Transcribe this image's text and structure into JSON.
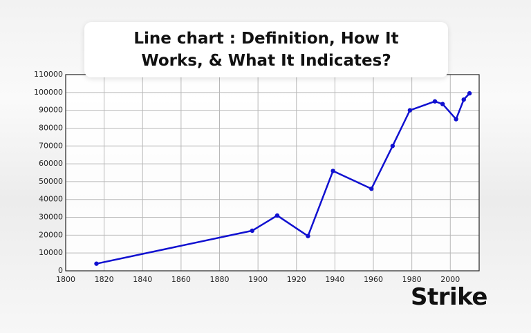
{
  "title": "Line chart : Definition, How It Works, & What It Indicates?",
  "logo": "Strike",
  "chart_data": {
    "type": "line",
    "x": [
      1816,
      1897,
      1910,
      1926,
      1939,
      1959,
      1970,
      1979,
      1992,
      1996,
      2003,
      2007,
      2010
    ],
    "series": [
      {
        "color": "#1010d0",
        "values": [
          4000,
          22500,
          31000,
          19500,
          56000,
          46000,
          70000,
          90000,
          95000,
          93500,
          85000,
          96000,
          99500
        ]
      }
    ],
    "xlim": [
      1800,
      2015
    ],
    "xticks": [
      1800,
      1820,
      1840,
      1860,
      1880,
      1900,
      1920,
      1940,
      1960,
      1980,
      2000
    ],
    "ylim": [
      0,
      110000
    ],
    "yticks": [
      0,
      10000,
      20000,
      30000,
      40000,
      50000,
      60000,
      70000,
      80000,
      90000,
      100000,
      110000
    ],
    "grid": true
  }
}
